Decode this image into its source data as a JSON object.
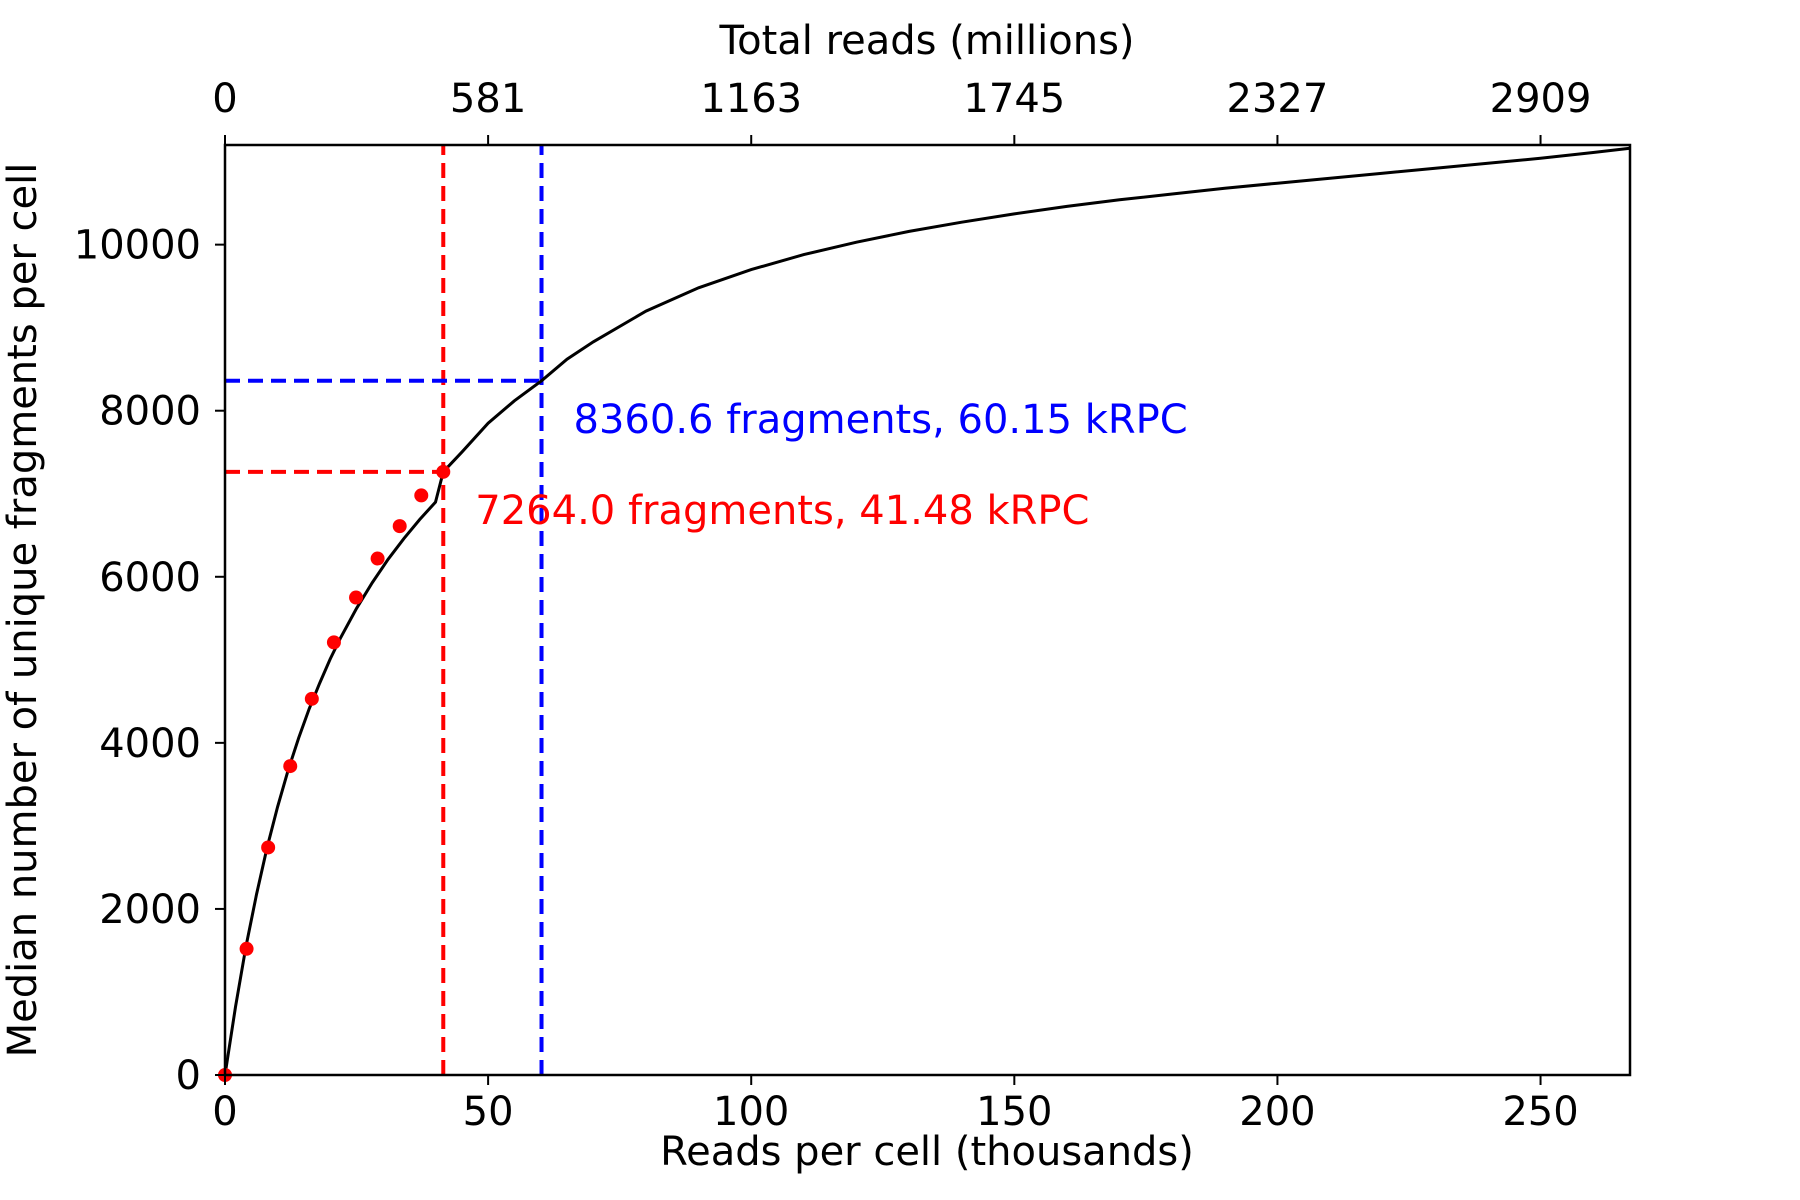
{
  "chart_data": {
    "type": "line",
    "title": "",
    "xlabel": "Reads per cell (thousands)",
    "ylabel": "Median number of unique fragments per cell",
    "xlabel_top": "Total reads (millions)",
    "xlim": [
      0,
      267
    ],
    "ylim": [
      0,
      11200
    ],
    "x_ticks": [
      "0",
      "50",
      "100",
      "150",
      "200",
      "250"
    ],
    "x_tick_values": [
      0,
      50,
      100,
      150,
      200,
      250
    ],
    "top_ticks": [
      "0",
      "581",
      "1163",
      "1745",
      "2327",
      "2909"
    ],
    "top_tick_values": [
      0,
      50,
      100,
      150,
      200,
      250
    ],
    "y_ticks": [
      "0",
      "2000",
      "4000",
      "6000",
      "8000",
      "10000"
    ],
    "y_tick_values": [
      0,
      2000,
      4000,
      6000,
      8000,
      10000
    ],
    "grid": false,
    "fit_curve": {
      "color": "#000000",
      "x": [
        0,
        2,
        4,
        6,
        8,
        10,
        12,
        14,
        16,
        18,
        20,
        22,
        25,
        28,
        31,
        34,
        37,
        40,
        41.48,
        45,
        50,
        55,
        60.15,
        65,
        70,
        80,
        90,
        100,
        110,
        120,
        130,
        140,
        150,
        160,
        170,
        180,
        190,
        200,
        210,
        220,
        230,
        240,
        250,
        260,
        267
      ],
      "y": [
        0,
        820,
        1550,
        2180,
        2740,
        3230,
        3670,
        4060,
        4410,
        4720,
        5010,
        5270,
        5620,
        5930,
        6210,
        6460,
        6690,
        6900,
        7264.0,
        7500,
        7850,
        8120,
        8360.6,
        8620,
        8830,
        9200,
        9480,
        9700,
        9880,
        10030,
        10160,
        10270,
        10370,
        10460,
        10540,
        10610,
        10680,
        10740,
        10800,
        10860,
        10920,
        10980,
        11040,
        11110,
        11160
      ]
    },
    "observed_points": {
      "color": "#ff0000",
      "x": [
        0,
        4.1,
        8.2,
        12.4,
        16.5,
        20.7,
        24.9,
        29.0,
        33.2,
        37.3,
        41.48
      ],
      "y": [
        0,
        1520,
        2740,
        3720,
        4530,
        5210,
        5750,
        6220,
        6610,
        6980,
        7264.0
      ]
    },
    "markers": [
      {
        "color": "#ff0000",
        "x": 41.48,
        "y": 7264.0,
        "label": "7264.0 fragments, 41.48 kRPC"
      },
      {
        "color": "#0000ff",
        "x": 60.15,
        "y": 8360.6,
        "label": "8360.6 fragments, 60.15 kRPC"
      }
    ]
  }
}
